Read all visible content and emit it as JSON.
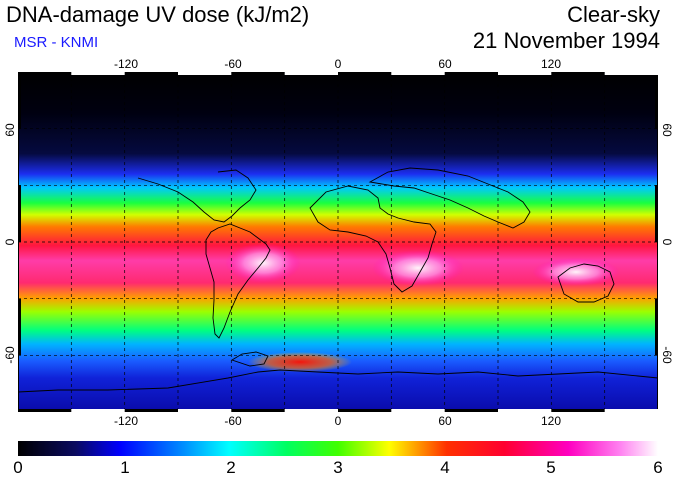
{
  "header": {
    "title": "DNA-damage UV dose (kJ/m2)",
    "source": "MSR - KNMI",
    "condition": "Clear-sky",
    "date": "21 November 1994"
  },
  "map": {
    "projection": "equirectangular",
    "lon_range": [
      -180,
      180
    ],
    "lat_range": [
      -90,
      90
    ],
    "lon_ticks": [
      "-120",
      "-60",
      "0",
      "60",
      "120"
    ],
    "lat_ticks": [
      "60",
      "0",
      "-60"
    ],
    "gridlines": "dashed every 30 degrees"
  },
  "colorbar": {
    "labels": [
      "0",
      "1",
      "2",
      "3",
      "4",
      "5",
      "6"
    ],
    "range": [
      0,
      6
    ],
    "colors": [
      "#000000",
      "#0000ff",
      "#00ffff",
      "#00ff00",
      "#ffff00",
      "#ff0000",
      "#ff00ff",
      "#ffffff"
    ]
  }
}
